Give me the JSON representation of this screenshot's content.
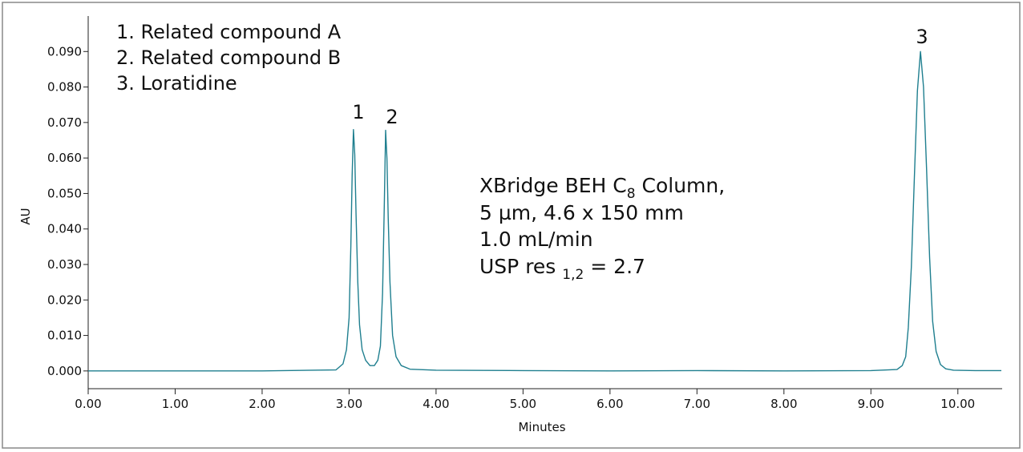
{
  "chart_data": {
    "type": "line",
    "x_label": "Minutes",
    "y_label": "AU",
    "legend_lines": [
      "1. Related compound A",
      "2. Related compound B",
      "3. Loratidine"
    ],
    "peak_labels": [
      "1",
      "2",
      "3"
    ],
    "conditions": {
      "line1": {
        "before": "XBridge BEH C",
        "subscript": "8",
        "after": " Column,"
      },
      "line2": "5 µm, 4.6 x 150 mm",
      "line3": "1.0 mL/min",
      "line4": {
        "before": "USP res ",
        "subscript": "1,2",
        "after": " = 2.7"
      }
    },
    "x": [
      0,
      1,
      2,
      2.85,
      2.93,
      2.97,
      3.0,
      3.02,
      3.035,
      3.05,
      3.065,
      3.08,
      3.1,
      3.12,
      3.15,
      3.19,
      3.24,
      3.29,
      3.33,
      3.36,
      3.385,
      3.405,
      3.42,
      3.435,
      3.45,
      3.47,
      3.5,
      3.54,
      3.6,
      3.7,
      4,
      5,
      6,
      7,
      8,
      9,
      9.3,
      9.36,
      9.4,
      9.43,
      9.465,
      9.5,
      9.535,
      9.57,
      9.605,
      9.64,
      9.675,
      9.71,
      9.75,
      9.8,
      9.86,
      9.95,
      10.2,
      10.5
    ],
    "series": [
      {
        "color": "#1f7f8f",
        "values": [
          0,
          0,
          0,
          0.0003,
          0.002,
          0.006,
          0.015,
          0.035,
          0.055,
          0.068,
          0.061,
          0.044,
          0.025,
          0.013,
          0.006,
          0.003,
          0.0015,
          0.0015,
          0.003,
          0.007,
          0.022,
          0.047,
          0.0678,
          0.06,
          0.043,
          0.025,
          0.01,
          0.004,
          0.0015,
          0.0005,
          0.0002,
          0.0001,
          0,
          0.0001,
          0,
          0.0001,
          0.0004,
          0.0015,
          0.004,
          0.0122,
          0.0293,
          0.0546,
          0.079,
          0.09,
          0.08,
          0.057,
          0.032,
          0.014,
          0.0055,
          0.0018,
          0.0006,
          0.0002,
          0.0001,
          0.0001
        ]
      }
    ],
    "xlim": [
      0,
      10.5
    ],
    "ylim": [
      -0.005,
      0.1
    ],
    "xticks": [
      {
        "value": 0,
        "label": "0.00"
      },
      {
        "value": 1,
        "label": "1.00"
      },
      {
        "value": 2,
        "label": "2.00"
      },
      {
        "value": 3,
        "label": "3.00"
      },
      {
        "value": 4,
        "label": "4.00"
      },
      {
        "value": 5,
        "label": "5.00"
      },
      {
        "value": 6,
        "label": "6.00"
      },
      {
        "value": 7,
        "label": "7.00"
      },
      {
        "value": 8,
        "label": "8.00"
      },
      {
        "value": 9,
        "label": "9.00"
      },
      {
        "value": 10,
        "label": "10.00"
      }
    ],
    "yticks": [
      {
        "value": 0,
        "label": "0.000"
      },
      {
        "value": 0.01,
        "label": "0.010"
      },
      {
        "value": 0.02,
        "label": "0.020"
      },
      {
        "value": 0.03,
        "label": "0.030"
      },
      {
        "value": 0.04,
        "label": "0.040"
      },
      {
        "value": 0.05,
        "label": "0.050"
      },
      {
        "value": 0.06,
        "label": "0.060"
      },
      {
        "value": 0.07,
        "label": "0.070"
      },
      {
        "value": 0.08,
        "label": "0.080"
      },
      {
        "value": 0.09,
        "label": "0.090"
      }
    ]
  }
}
